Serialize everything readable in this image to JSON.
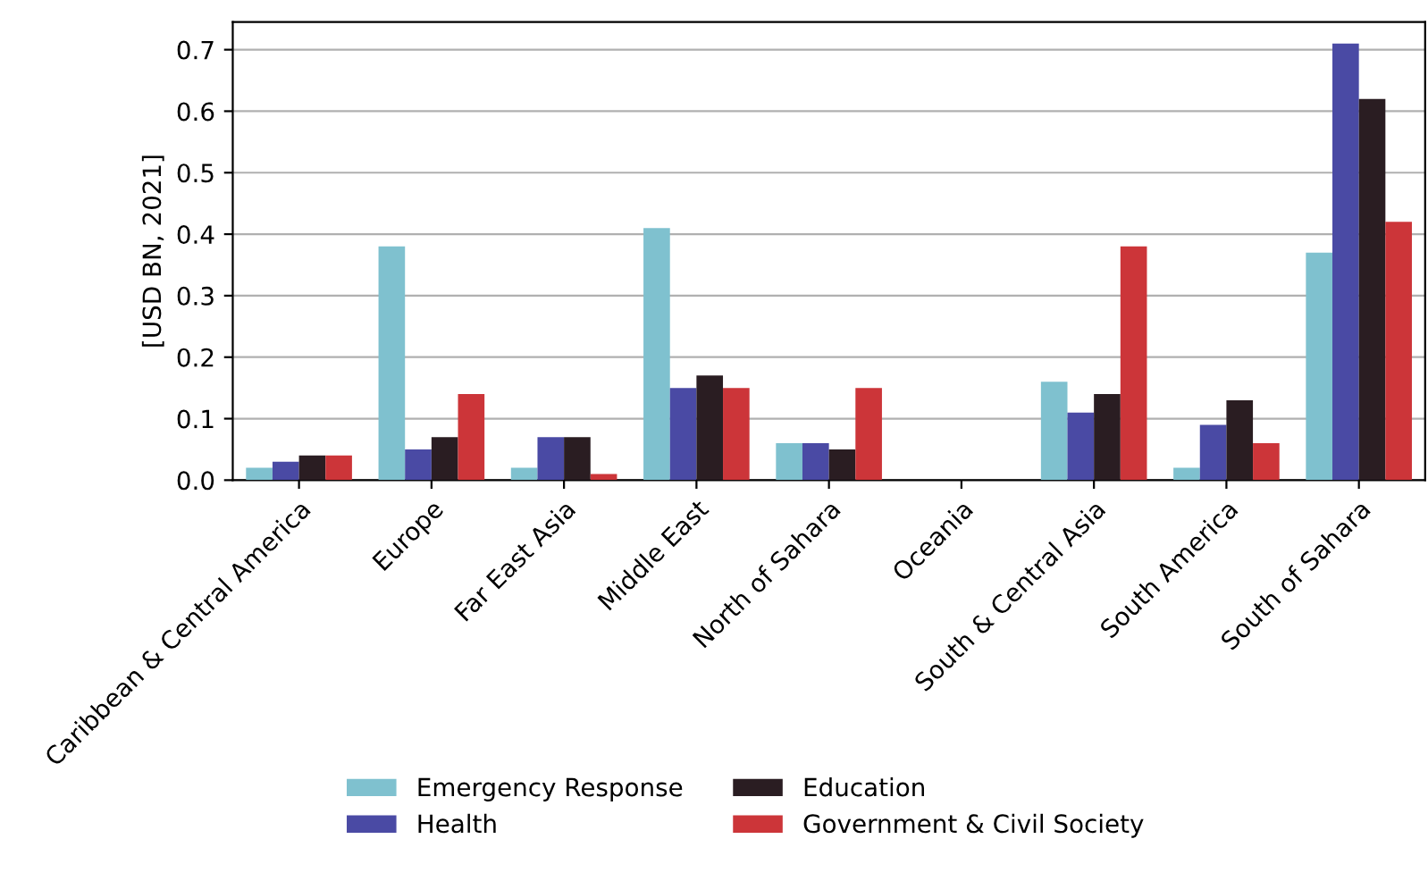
{
  "chart_data": {
    "type": "bar",
    "ylabel": "[USD BN, 2021]",
    "categories": [
      "Caribbean & Central America",
      "Europe",
      "Far East Asia",
      "Middle East",
      "North of Sahara",
      "Oceania",
      "South & Central Asia",
      "South America",
      "South of Sahara"
    ],
    "series": [
      {
        "name": "Emergency Response",
        "color": "#7fc1cf",
        "values": [
          0.02,
          0.38,
          0.02,
          0.41,
          0.06,
          0.0,
          0.16,
          0.02,
          0.37
        ]
      },
      {
        "name": "Health",
        "color": "#4a4aa4",
        "values": [
          0.03,
          0.05,
          0.07,
          0.15,
          0.06,
          0.0,
          0.11,
          0.09,
          0.71
        ]
      },
      {
        "name": "Education",
        "color": "#2a1d22",
        "values": [
          0.04,
          0.07,
          0.07,
          0.17,
          0.05,
          0.0,
          0.14,
          0.13,
          0.62
        ]
      },
      {
        "name": "Government & Civil Society",
        "color": "#cc3539",
        "values": [
          0.04,
          0.14,
          0.01,
          0.15,
          0.15,
          0.0,
          0.38,
          0.06,
          0.42
        ]
      }
    ],
    "ylim": [
      0,
      0.745
    ],
    "yticks": [
      {
        "value": 0,
        "label": "0.0"
      },
      0.1,
      0.2,
      0.3,
      0.4,
      0.5,
      0.6,
      0.7
    ],
    "grid": "y",
    "legend": "bottom"
  }
}
